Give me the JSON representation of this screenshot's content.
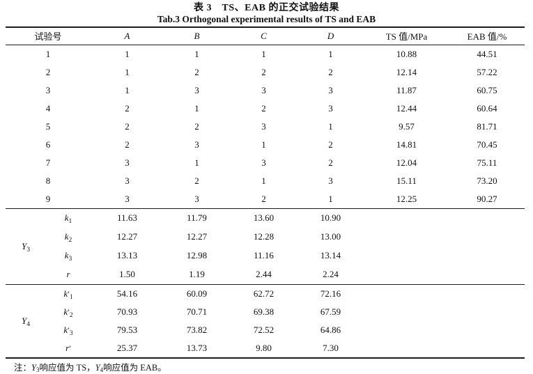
{
  "title": {
    "cn": "表 3　TS、EAB 的正交试验结果",
    "en": "Tab.3 Orthogonal experimental results of TS and EAB"
  },
  "table": {
    "headers": {
      "trial": "试验号",
      "a": "A",
      "b": "B",
      "c": "C",
      "d": "D",
      "ts": "TS 值/MPa",
      "eab": "EAB 值/%"
    },
    "rows": [
      [
        "1",
        "1",
        "1",
        "1",
        "1",
        "10.88",
        "44.51"
      ],
      [
        "2",
        "1",
        "2",
        "2",
        "2",
        "12.14",
        "57.22"
      ],
      [
        "3",
        "1",
        "3",
        "3",
        "3",
        "11.87",
        "60.75"
      ],
      [
        "4",
        "2",
        "1",
        "2",
        "3",
        "12.44",
        "60.64"
      ],
      [
        "5",
        "2",
        "2",
        "3",
        "1",
        "9.57",
        "81.71"
      ],
      [
        "6",
        "2",
        "3",
        "1",
        "2",
        "14.81",
        "70.45"
      ],
      [
        "7",
        "3",
        "1",
        "3",
        "2",
        "12.04",
        "75.11"
      ],
      [
        "8",
        "3",
        "2",
        "1",
        "3",
        "15.11",
        "73.20"
      ],
      [
        "9",
        "3",
        "3",
        "2",
        "1",
        "12.25",
        "90.27"
      ]
    ],
    "sections": [
      {
        "group_base": "Y",
        "group_sub": "3",
        "rows": [
          {
            "base": "k",
            "prime": "",
            "sub": "1",
            "values": [
              "11.63",
              "11.79",
              "13.60",
              "10.90"
            ]
          },
          {
            "base": "k",
            "prime": "",
            "sub": "2",
            "values": [
              "12.27",
              "12.27",
              "12.28",
              "13.00"
            ]
          },
          {
            "base": "k",
            "prime": "",
            "sub": "3",
            "values": [
              "13.13",
              "12.98",
              "11.16",
              "13.14"
            ]
          },
          {
            "base": "r",
            "prime": "",
            "sub": "",
            "values": [
              "1.50",
              "1.19",
              "2.44",
              "2.24"
            ]
          }
        ]
      },
      {
        "group_base": "Y",
        "group_sub": "4",
        "rows": [
          {
            "base": "k",
            "prime": "′",
            "sub": "1",
            "values": [
              "54.16",
              "60.09",
              "62.72",
              "72.16"
            ]
          },
          {
            "base": "k",
            "prime": "′",
            "sub": "2",
            "values": [
              "70.93",
              "70.71",
              "69.38",
              "67.59"
            ]
          },
          {
            "base": "k",
            "prime": "′",
            "sub": "3",
            "values": [
              "79.53",
              "73.82",
              "72.52",
              "64.86"
            ]
          },
          {
            "base": "r",
            "prime": "′",
            "sub": "",
            "values": [
              "25.37",
              "13.73",
              "9.80",
              "7.30"
            ]
          }
        ]
      }
    ]
  },
  "note": {
    "label": "注：",
    "y3_base": "Y",
    "y3_sub": "3",
    "text1": "响应值为 TS，",
    "y4_base": "Y",
    "y4_sub": "4",
    "text2": "响应值为 EAB。"
  }
}
